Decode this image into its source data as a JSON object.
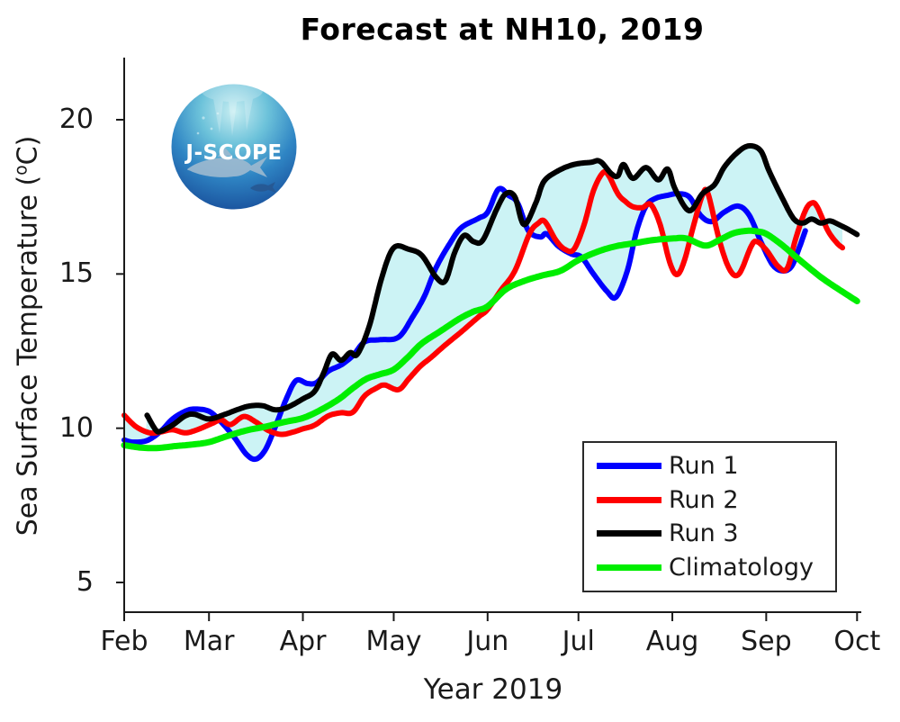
{
  "figure": {
    "logo_text": "J-SCOPE"
  },
  "chart_data": {
    "type": "line",
    "title": "Forecast at NH10, 2019",
    "xlabel": "Year 2019",
    "ylabel": "Sea Surface Temperature (°C)",
    "ylabel_parts": {
      "prefix": "Sea Surface Temperature (",
      "sup": "o",
      "suffix": "C)"
    },
    "x_axis": {
      "tick_labels": [
        "Feb",
        "Mar",
        "Apr",
        "May",
        "Jun",
        "Jul",
        "Aug",
        "Sep",
        "Oct"
      ],
      "note": "months of 2019, x encoded as month number 2=Feb1 ... 10=Oct1"
    },
    "y_axis": {
      "tick_values": [
        20,
        15,
        10,
        5
      ],
      "range": [
        4,
        22
      ],
      "unit": "°C"
    },
    "grid": false,
    "box": false,
    "fill": {
      "description": "light-cyan min-max envelope across Run 1, Run 2, Run 3",
      "color": "#CCF3F5"
    },
    "legend": {
      "position": "inside lower-right",
      "items": [
        {
          "label": "Run 1",
          "color": "#0000FF"
        },
        {
          "label": "Run 2",
          "color": "#FF0000"
        },
        {
          "label": "Run 3",
          "color": "#000000"
        },
        {
          "label": "Climatology",
          "color": "#00EE00"
        }
      ]
    },
    "series": [
      {
        "name": "Run 1",
        "color": "#0000FF",
        "width": 6,
        "points": [
          [
            2.0,
            9.62
          ],
          [
            2.1,
            9.55
          ],
          [
            2.27,
            9.6
          ],
          [
            2.43,
            9.9
          ],
          [
            2.57,
            10.3
          ],
          [
            2.72,
            10.55
          ],
          [
            2.83,
            10.62
          ],
          [
            3.0,
            10.55
          ],
          [
            3.13,
            10.2
          ],
          [
            3.27,
            9.7
          ],
          [
            3.4,
            9.15
          ],
          [
            3.5,
            9.0
          ],
          [
            3.6,
            9.3
          ],
          [
            3.7,
            10.0
          ],
          [
            3.83,
            11.0
          ],
          [
            3.93,
            11.55
          ],
          [
            4.05,
            11.45
          ],
          [
            4.15,
            11.48
          ],
          [
            4.28,
            11.85
          ],
          [
            4.42,
            12.05
          ],
          [
            4.55,
            12.35
          ],
          [
            4.68,
            12.8
          ],
          [
            4.85,
            12.87
          ],
          [
            5.05,
            12.95
          ],
          [
            5.2,
            13.6
          ],
          [
            5.33,
            14.3
          ],
          [
            5.45,
            15.2
          ],
          [
            5.6,
            16.0
          ],
          [
            5.72,
            16.5
          ],
          [
            5.9,
            16.8
          ],
          [
            6.0,
            17.0
          ],
          [
            6.12,
            17.75
          ],
          [
            6.23,
            17.55
          ],
          [
            6.33,
            17.3
          ],
          [
            6.45,
            16.4
          ],
          [
            6.58,
            16.2
          ],
          [
            6.65,
            16.3
          ],
          [
            6.78,
            15.9
          ],
          [
            6.92,
            15.65
          ],
          [
            7.03,
            15.55
          ],
          [
            7.16,
            15.0
          ],
          [
            7.3,
            14.45
          ],
          [
            7.4,
            14.25
          ],
          [
            7.52,
            15.1
          ],
          [
            7.62,
            16.4
          ],
          [
            7.72,
            17.2
          ],
          [
            7.82,
            17.45
          ],
          [
            7.95,
            17.55
          ],
          [
            8.05,
            17.6
          ],
          [
            8.18,
            17.5
          ],
          [
            8.3,
            16.9
          ],
          [
            8.42,
            16.7
          ],
          [
            8.55,
            17.0
          ],
          [
            8.7,
            17.2
          ],
          [
            8.82,
            16.9
          ],
          [
            8.95,
            16.0
          ],
          [
            9.07,
            15.3
          ],
          [
            9.18,
            15.1
          ],
          [
            9.28,
            15.25
          ],
          [
            9.37,
            15.9
          ],
          [
            9.43,
            16.4
          ]
        ]
      },
      {
        "name": "Run 2",
        "color": "#FF0000",
        "width": 6,
        "points": [
          [
            2.0,
            10.42
          ],
          [
            2.14,
            10.05
          ],
          [
            2.3,
            9.85
          ],
          [
            2.43,
            9.88
          ],
          [
            2.57,
            9.95
          ],
          [
            2.72,
            9.85
          ],
          [
            2.86,
            9.95
          ],
          [
            3.03,
            10.15
          ],
          [
            3.13,
            10.27
          ],
          [
            3.23,
            10.12
          ],
          [
            3.37,
            10.38
          ],
          [
            3.5,
            10.2
          ],
          [
            3.63,
            9.93
          ],
          [
            3.77,
            9.8
          ],
          [
            3.9,
            9.88
          ],
          [
            4.0,
            9.98
          ],
          [
            4.13,
            10.1
          ],
          [
            4.28,
            10.4
          ],
          [
            4.42,
            10.5
          ],
          [
            4.55,
            10.52
          ],
          [
            4.68,
            11.05
          ],
          [
            4.81,
            11.3
          ],
          [
            4.9,
            11.4
          ],
          [
            5.05,
            11.25
          ],
          [
            5.16,
            11.6
          ],
          [
            5.28,
            12.0
          ],
          [
            5.4,
            12.3
          ],
          [
            5.55,
            12.7
          ],
          [
            5.73,
            13.15
          ],
          [
            5.9,
            13.6
          ],
          [
            6.0,
            13.85
          ],
          [
            6.14,
            14.45
          ],
          [
            6.3,
            15.1
          ],
          [
            6.46,
            16.3
          ],
          [
            6.56,
            16.65
          ],
          [
            6.63,
            16.7
          ],
          [
            6.75,
            16.1
          ],
          [
            6.85,
            15.8
          ],
          [
            6.95,
            15.8
          ],
          [
            7.06,
            16.6
          ],
          [
            7.16,
            17.7
          ],
          [
            7.26,
            18.28
          ],
          [
            7.32,
            18.2
          ],
          [
            7.42,
            17.6
          ],
          [
            7.5,
            17.35
          ],
          [
            7.58,
            17.18
          ],
          [
            7.68,
            17.15
          ],
          [
            7.77,
            17.25
          ],
          [
            7.87,
            16.6
          ],
          [
            7.97,
            15.4
          ],
          [
            8.05,
            14.98
          ],
          [
            8.13,
            15.45
          ],
          [
            8.22,
            16.5
          ],
          [
            8.32,
            17.55
          ],
          [
            8.38,
            17.6
          ],
          [
            8.5,
            16.1
          ],
          [
            8.61,
            15.15
          ],
          [
            8.71,
            15.0
          ],
          [
            8.84,
            15.9
          ],
          [
            8.9,
            16.05
          ],
          [
            9.0,
            15.78
          ],
          [
            9.13,
            15.25
          ],
          [
            9.23,
            15.18
          ],
          [
            9.33,
            16.2
          ],
          [
            9.43,
            17.05
          ],
          [
            9.5,
            17.3
          ],
          [
            9.56,
            17.18
          ],
          [
            9.68,
            16.4
          ],
          [
            9.78,
            16.0
          ],
          [
            9.84,
            15.85
          ]
        ]
      },
      {
        "name": "Run 3",
        "color": "#000000",
        "width": 6,
        "points": [
          [
            2.27,
            10.42
          ],
          [
            2.37,
            9.95
          ],
          [
            2.43,
            9.9
          ],
          [
            2.57,
            10.1
          ],
          [
            2.72,
            10.4
          ],
          [
            2.83,
            10.45
          ],
          [
            3.0,
            10.3
          ],
          [
            3.17,
            10.45
          ],
          [
            3.3,
            10.6
          ],
          [
            3.43,
            10.72
          ],
          [
            3.57,
            10.73
          ],
          [
            3.7,
            10.6
          ],
          [
            3.83,
            10.67
          ],
          [
            4.0,
            10.95
          ],
          [
            4.13,
            11.2
          ],
          [
            4.23,
            11.8
          ],
          [
            4.32,
            12.4
          ],
          [
            4.42,
            12.2
          ],
          [
            4.52,
            12.45
          ],
          [
            4.6,
            12.4
          ],
          [
            4.73,
            13.3
          ],
          [
            4.87,
            14.9
          ],
          [
            5.0,
            15.85
          ],
          [
            5.16,
            15.8
          ],
          [
            5.3,
            15.6
          ],
          [
            5.45,
            14.9
          ],
          [
            5.55,
            14.78
          ],
          [
            5.65,
            15.7
          ],
          [
            5.75,
            16.25
          ],
          [
            5.85,
            16.05
          ],
          [
            5.95,
            16.1
          ],
          [
            6.1,
            17.1
          ],
          [
            6.2,
            17.6
          ],
          [
            6.3,
            17.5
          ],
          [
            6.4,
            16.6
          ],
          [
            6.53,
            17.3
          ],
          [
            6.62,
            18.0
          ],
          [
            6.78,
            18.35
          ],
          [
            6.95,
            18.55
          ],
          [
            7.13,
            18.62
          ],
          [
            7.23,
            18.65
          ],
          [
            7.35,
            18.25
          ],
          [
            7.42,
            18.18
          ],
          [
            7.48,
            18.55
          ],
          [
            7.58,
            18.1
          ],
          [
            7.72,
            18.45
          ],
          [
            7.85,
            18.05
          ],
          [
            7.95,
            18.4
          ],
          [
            8.03,
            17.75
          ],
          [
            8.18,
            17.05
          ],
          [
            8.32,
            17.6
          ],
          [
            8.45,
            17.9
          ],
          [
            8.55,
            18.45
          ],
          [
            8.68,
            18.9
          ],
          [
            8.81,
            19.15
          ],
          [
            8.94,
            19.0
          ],
          [
            9.03,
            18.35
          ],
          [
            9.17,
            17.5
          ],
          [
            9.3,
            16.8
          ],
          [
            9.4,
            16.65
          ],
          [
            9.5,
            16.78
          ],
          [
            9.6,
            16.65
          ],
          [
            9.7,
            16.72
          ],
          [
            9.8,
            16.6
          ],
          [
            9.9,
            16.45
          ],
          [
            10.0,
            16.28
          ]
        ]
      },
      {
        "name": "Climatology",
        "color": "#00EE00",
        "width": 7,
        "points": [
          [
            2.0,
            9.45
          ],
          [
            2.2,
            9.37
          ],
          [
            2.4,
            9.36
          ],
          [
            2.6,
            9.42
          ],
          [
            2.8,
            9.47
          ],
          [
            3.0,
            9.55
          ],
          [
            3.2,
            9.75
          ],
          [
            3.4,
            9.93
          ],
          [
            3.6,
            10.05
          ],
          [
            3.8,
            10.2
          ],
          [
            4.0,
            10.33
          ],
          [
            4.2,
            10.6
          ],
          [
            4.4,
            10.95
          ],
          [
            4.55,
            11.3
          ],
          [
            4.7,
            11.6
          ],
          [
            4.85,
            11.75
          ],
          [
            5.0,
            11.9
          ],
          [
            5.15,
            12.3
          ],
          [
            5.3,
            12.75
          ],
          [
            5.5,
            13.15
          ],
          [
            5.7,
            13.55
          ],
          [
            5.85,
            13.78
          ],
          [
            6.0,
            13.95
          ],
          [
            6.2,
            14.5
          ],
          [
            6.4,
            14.77
          ],
          [
            6.6,
            14.95
          ],
          [
            6.8,
            15.1
          ],
          [
            7.0,
            15.45
          ],
          [
            7.2,
            15.72
          ],
          [
            7.4,
            15.9
          ],
          [
            7.6,
            16.0
          ],
          [
            7.8,
            16.1
          ],
          [
            8.0,
            16.15
          ],
          [
            8.15,
            16.15
          ],
          [
            8.35,
            15.92
          ],
          [
            8.5,
            16.1
          ],
          [
            8.65,
            16.32
          ],
          [
            8.8,
            16.4
          ],
          [
            8.9,
            16.38
          ],
          [
            9.0,
            16.3
          ],
          [
            9.17,
            15.95
          ],
          [
            9.37,
            15.45
          ],
          [
            9.6,
            14.9
          ],
          [
            9.8,
            14.5
          ],
          [
            10.0,
            14.12
          ]
        ]
      }
    ]
  }
}
